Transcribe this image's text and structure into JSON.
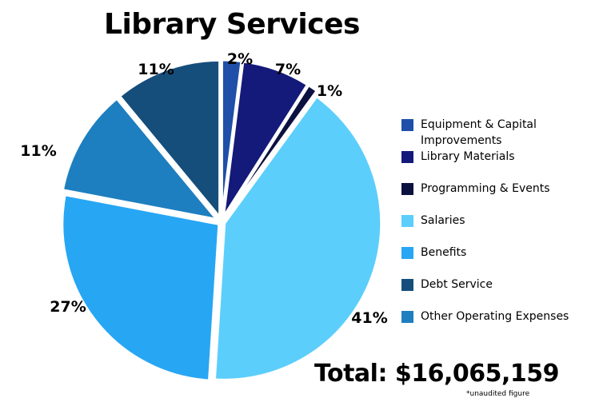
{
  "title": "Library Services",
  "total": "Total: $16,065,159",
  "note": "*unaudited figure",
  "chart_data": {
    "type": "pie",
    "slices": [
      {
        "name": "Equipment & Capital Improvements",
        "value": 2,
        "label": "2%",
        "color": "#1f4fa8"
      },
      {
        "name": "Library Materials",
        "value": 7,
        "label": "7%",
        "color": "#141a7a"
      },
      {
        "name": "Programming & Events",
        "value": 1,
        "label": "1%",
        "color": "#0b1240"
      },
      {
        "name": "Salaries",
        "value": 41,
        "label": "41%",
        "color": "#5ccefb"
      },
      {
        "name": "Benefits",
        "value": 27,
        "label": "27%",
        "color": "#27a6f4"
      },
      {
        "name": "Other Operating Expenses",
        "value": 11,
        "label": "11%",
        "color": "#1d7fbf"
      },
      {
        "name": "Debt Service",
        "value": 11,
        "label": "11%",
        "color": "#164e7b"
      }
    ],
    "legend_position": "right"
  },
  "legend": [
    {
      "text": "Equipment & Capital\nImprovements",
      "color": "#1f4fa8"
    },
    {
      "text": "Library Materials",
      "color": "#141a7a"
    },
    {
      "text": "Programming & Events",
      "color": "#0b1240"
    },
    {
      "text": "Salaries",
      "color": "#5ccefb"
    },
    {
      "text": "Benefits",
      "color": "#27a6f4"
    },
    {
      "text": "Debt Service",
      "color": "#164e7b"
    },
    {
      "text": "Other Operating Expenses",
      "color": "#1d7fbf"
    }
  ]
}
